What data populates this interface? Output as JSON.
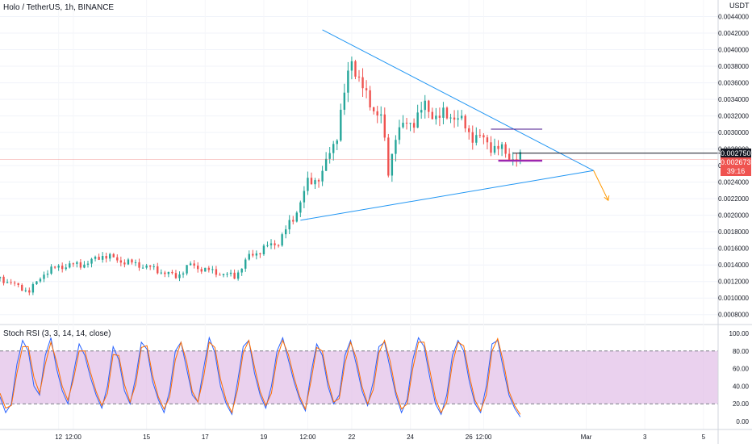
{
  "header": {
    "symbol": "Holo / TetherUS, 1h, BINANCE",
    "currency": "USDT"
  },
  "price_tags": {
    "level": "0.0027500",
    "last": "0.0026739",
    "countdown": "39:16"
  },
  "indicator": {
    "label": "Stoch RSI (3, 3, 14, 14, close)"
  },
  "colors": {
    "up": "#26a69a",
    "down": "#ef5350",
    "trendline": "#2196f3",
    "rsi_k": "#2962ff",
    "rsi_d": "#ff6d00",
    "rsi_band": "#e1bee7",
    "support": "#9c27b0"
  },
  "chart_data": [
    {
      "type": "candlestick",
      "title": "Holo / TetherUS, 1h, BINANCE",
      "y_ticks": [
        "0.0044000",
        "0.0042000",
        "0.0040000",
        "0.0038000",
        "0.0036000",
        "0.0034000",
        "0.0032000",
        "0.0030000",
        "0.0028000",
        "0.0026000",
        "0.0024000",
        "0.0022000",
        "0.0020000",
        "0.0018000",
        "0.0016000",
        "0.0014000",
        "0.0012000",
        "0.0010000",
        "0.0008000"
      ],
      "ylim": [
        0.0007,
        0.0046
      ],
      "x_ticks": [
        "12",
        "12:00",
        "15",
        "17",
        "19",
        "12:00",
        "22",
        "24",
        "26",
        "12:00",
        "Mar",
        "3",
        "5"
      ],
      "close_path": [
        [
          "Feb 10 00:00",
          0.00124
        ],
        [
          "Feb 11 00:00",
          0.00108
        ],
        [
          "Feb 11 12:00",
          0.0013
        ],
        [
          "Feb 12 00:00",
          0.00138
        ],
        [
          "Feb 13 00:00",
          0.00142
        ],
        [
          "Feb 13 12:00",
          0.00152
        ],
        [
          "Feb 14 00:00",
          0.00146
        ],
        [
          "Feb 15 00:00",
          0.00138
        ],
        [
          "Feb 16 00:00",
          0.00126
        ],
        [
          "Feb 16 12:00",
          0.0014
        ],
        [
          "Feb 17 00:00",
          0.00134
        ],
        [
          "Feb 18 00:00",
          0.00126
        ],
        [
          "Feb 18 12:00",
          0.0015
        ],
        [
          "Feb 19 00:00",
          0.0016
        ],
        [
          "Feb 19 12:00",
          0.00168
        ],
        [
          "Feb 20 00:00",
          0.00196
        ],
        [
          "Feb 20 12:00",
          0.00238
        ],
        [
          "Feb 21 00:00",
          0.0025
        ],
        [
          "Feb 21 12:00",
          0.003
        ],
        [
          "Feb 22 00:00",
          0.0039
        ],
        [
          "Feb 22 12:00",
          0.0034
        ],
        [
          "Feb 23 00:00",
          0.0032
        ],
        [
          "Feb 23 06:00",
          0.0025
        ],
        [
          "Feb 23 12:00",
          0.003
        ],
        [
          "Feb 24 00:00",
          0.00312
        ],
        [
          "Feb 24 12:00",
          0.0033
        ],
        [
          "Feb 25 00:00",
          0.00318
        ],
        [
          "Feb 25 12:00",
          0.00322
        ],
        [
          "Feb 26 00:00",
          0.003
        ],
        [
          "Feb 26 12:00",
          0.0029
        ],
        [
          "Feb 27 00:00",
          0.0028
        ],
        [
          "Feb 27 12:00",
          0.0027
        ],
        [
          "Feb 27 18:00",
          0.00267
        ]
      ],
      "annotations": {
        "triangle_upper": [
          [
            "Feb 21 00:00",
            0.00424
          ],
          [
            "Mar 1 06:00",
            0.00254
          ]
        ],
        "triangle_lower": [
          [
            "Feb 20 06:00",
            0.00194
          ],
          [
            "Mar 1 06:00",
            0.00254
          ]
        ],
        "resistance_line": 0.00304,
        "support_line": 0.00266,
        "horizontal_level": 0.00275,
        "projection_arrow": [
          [
            "Mar 1 06:00",
            0.00254
          ],
          [
            "Mar 1 18:00",
            0.00218
          ]
        ]
      }
    },
    {
      "type": "line",
      "title": "Stoch RSI (3, 3, 14, 14, close)",
      "y_ticks": [
        "100.00",
        "80.00",
        "60.00",
        "40.00",
        "20.00",
        "0.00"
      ],
      "ylim": [
        0,
        100
      ],
      "band": [
        20,
        80
      ],
      "series": [
        {
          "name": "K",
          "values": [
            28,
            10,
            20,
            65,
            92,
            80,
            40,
            30,
            75,
            95,
            60,
            35,
            20,
            55,
            88,
            75,
            50,
            30,
            15,
            40,
            85,
            70,
            35,
            20,
            50,
            90,
            82,
            45,
            25,
            10,
            35,
            80,
            90,
            60,
            30,
            22,
            60,
            95,
            78,
            40,
            20,
            8,
            45,
            85,
            92,
            55,
            30,
            15,
            40,
            80,
            95,
            70,
            45,
            25,
            12,
            55,
            88,
            75,
            40,
            20,
            30,
            75,
            92,
            65,
            35,
            18,
            45,
            85,
            90,
            60,
            30,
            10,
            25,
            70,
            95,
            85,
            50,
            20,
            8,
            30,
            75,
            92,
            80,
            45,
            20,
            10,
            40,
            88,
            92,
            60,
            30,
            15,
            5
          ]
        },
        {
          "name": "D",
          "values": [
            32,
            15,
            18,
            55,
            85,
            85,
            50,
            32,
            65,
            90,
            68,
            40,
            24,
            48,
            80,
            80,
            56,
            34,
            18,
            32,
            76,
            75,
            42,
            22,
            42,
            84,
            86,
            52,
            28,
            14,
            28,
            70,
            90,
            68,
            34,
            22,
            50,
            90,
            84,
            48,
            24,
            10,
            36,
            78,
            92,
            62,
            34,
            18,
            32,
            72,
            92,
            76,
            50,
            28,
            14,
            46,
            84,
            80,
            46,
            22,
            26,
            66,
            90,
            72,
            40,
            20,
            36,
            78,
            92,
            68,
            34,
            14,
            20,
            60,
            90,
            90,
            58,
            26,
            10,
            22,
            66,
            90,
            86,
            52,
            24,
            12,
            30,
            80,
            94,
            68,
            34,
            18,
            8
          ]
        }
      ]
    }
  ]
}
